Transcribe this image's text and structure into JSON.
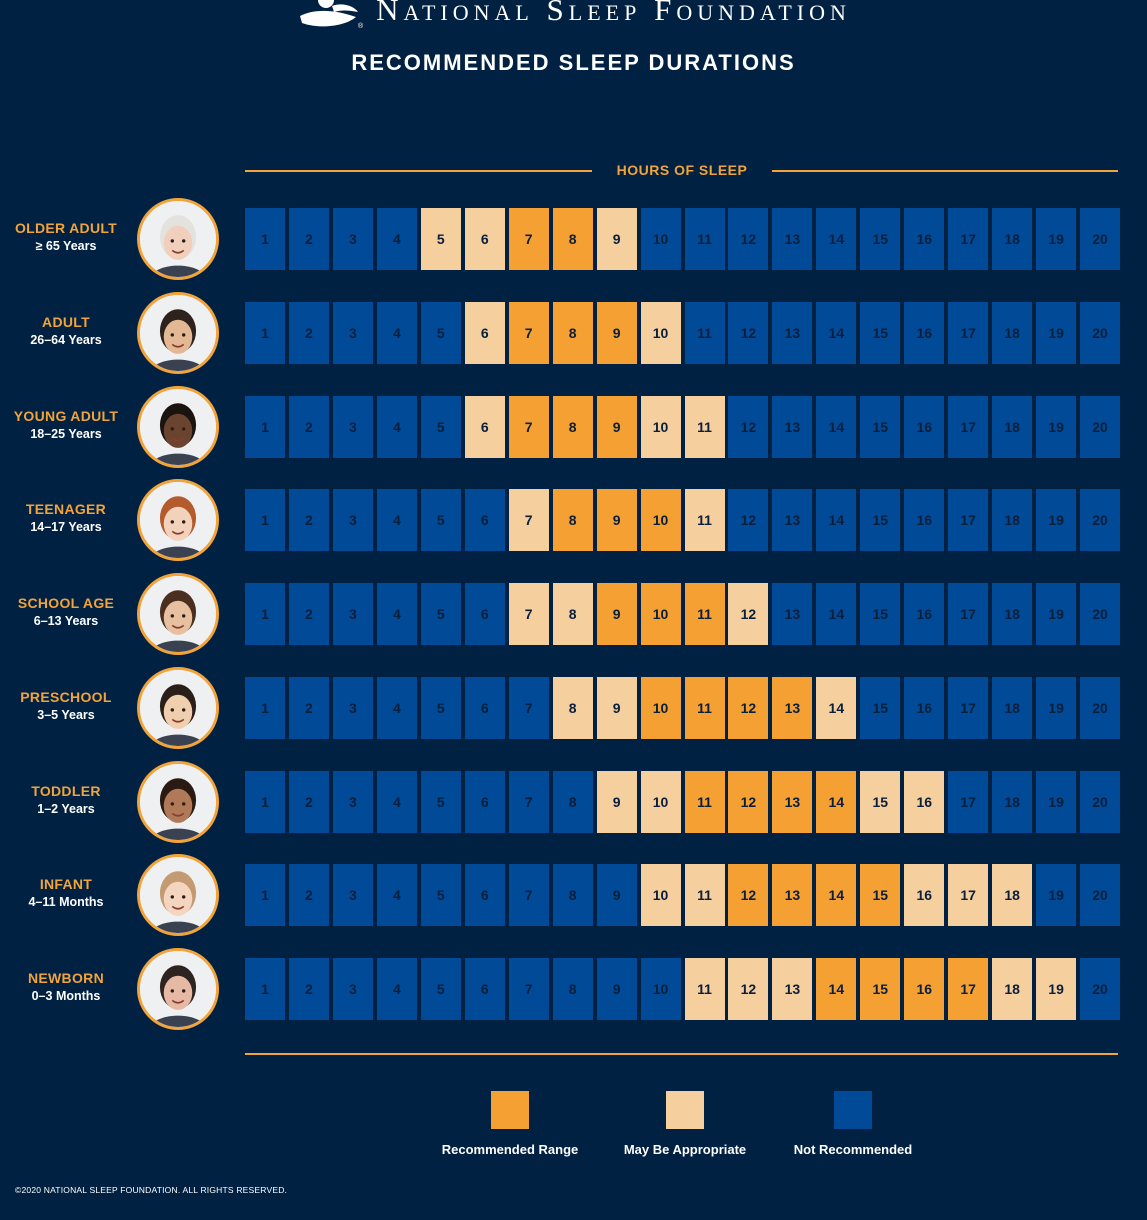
{
  "header": {
    "brand": "National Sleep Foundation",
    "registered_mark": "®",
    "logo_icon": "sleeping-figure-logo-icon"
  },
  "chart_data": {
    "type": "table",
    "title": "RECOMMENDED SLEEP DURATIONS",
    "xlabel": "HOURS OF SLEEP",
    "hours": [
      1,
      2,
      3,
      4,
      5,
      6,
      7,
      8,
      9,
      10,
      11,
      12,
      13,
      14,
      15,
      16,
      17,
      18,
      19,
      20
    ],
    "legend": [
      {
        "key": "recommended",
        "label": "Recommended Range",
        "color": "#f5a033"
      },
      {
        "key": "may_be_appropriate",
        "label": "May Be Appropriate",
        "color": "#f6cf9e"
      },
      {
        "key": "not_recommended",
        "label": "Not Recommended",
        "color": "#004a98"
      }
    ],
    "rows": [
      {
        "group": "OLDER ADULT",
        "age": "≥ 65 Years",
        "recommended": [
          7,
          8
        ],
        "may_be_appropriate": [
          5,
          6,
          9
        ]
      },
      {
        "group": "ADULT",
        "age": "26–64 Years",
        "recommended": [
          7,
          8,
          9
        ],
        "may_be_appropriate": [
          6,
          10
        ]
      },
      {
        "group": "YOUNG ADULT",
        "age": "18–25 Years",
        "recommended": [
          7,
          8,
          9
        ],
        "may_be_appropriate": [
          6,
          10,
          11
        ]
      },
      {
        "group": "TEENAGER",
        "age": "14–17 Years",
        "recommended": [
          8,
          9,
          10
        ],
        "may_be_appropriate": [
          7,
          11
        ]
      },
      {
        "group": "SCHOOL AGE",
        "age": "6–13 Years",
        "recommended": [
          9,
          10,
          11
        ],
        "may_be_appropriate": [
          7,
          8,
          12
        ]
      },
      {
        "group": "PRESCHOOL",
        "age": "3–5 Years",
        "recommended": [
          10,
          11,
          12,
          13
        ],
        "may_be_appropriate": [
          8,
          9,
          14
        ]
      },
      {
        "group": "TODDLER",
        "age": "1–2 Years",
        "recommended": [
          11,
          12,
          13,
          14
        ],
        "may_be_appropriate": [
          9,
          10,
          15,
          16
        ]
      },
      {
        "group": "INFANT",
        "age": "4–11 Months",
        "recommended": [
          12,
          13,
          14,
          15
        ],
        "may_be_appropriate": [
          10,
          11,
          16,
          17,
          18
        ]
      },
      {
        "group": "NEWBORN",
        "age": "0–3 Months",
        "recommended": [
          14,
          15,
          16,
          17
        ],
        "may_be_appropriate": [
          11,
          12,
          13,
          18,
          19
        ]
      }
    ]
  },
  "avatars": [
    {
      "icon": "older-adult-portrait-icon",
      "skin": "#f1cfbd",
      "hair": "#e4e2df"
    },
    {
      "icon": "adult-portrait-icon",
      "skin": "#e3b894",
      "hair": "#2d231c"
    },
    {
      "icon": "young-adult-portrait-icon",
      "skin": "#6b4430",
      "hair": "#1a1411"
    },
    {
      "icon": "teenager-portrait-icon",
      "skin": "#f3d2bc",
      "hair": "#b55a2d"
    },
    {
      "icon": "school-age-portrait-icon",
      "skin": "#e7c0a0",
      "hair": "#4a2e1e"
    },
    {
      "icon": "preschool-portrait-icon",
      "skin": "#f0cfae",
      "hair": "#2a1f18"
    },
    {
      "icon": "toddler-portrait-icon",
      "skin": "#b07a58",
      "hair": "#2a1a12"
    },
    {
      "icon": "infant-portrait-icon",
      "skin": "#f3d5c0",
      "hair": "#c49a72"
    },
    {
      "icon": "newborn-portrait-icon",
      "skin": "#e6b9a4",
      "hair": "#2d2320"
    }
  ],
  "footer": {
    "copyright": "©2020 NATIONAL SLEEP FOUNDATION. ALL RIGHTS RESERVED."
  }
}
